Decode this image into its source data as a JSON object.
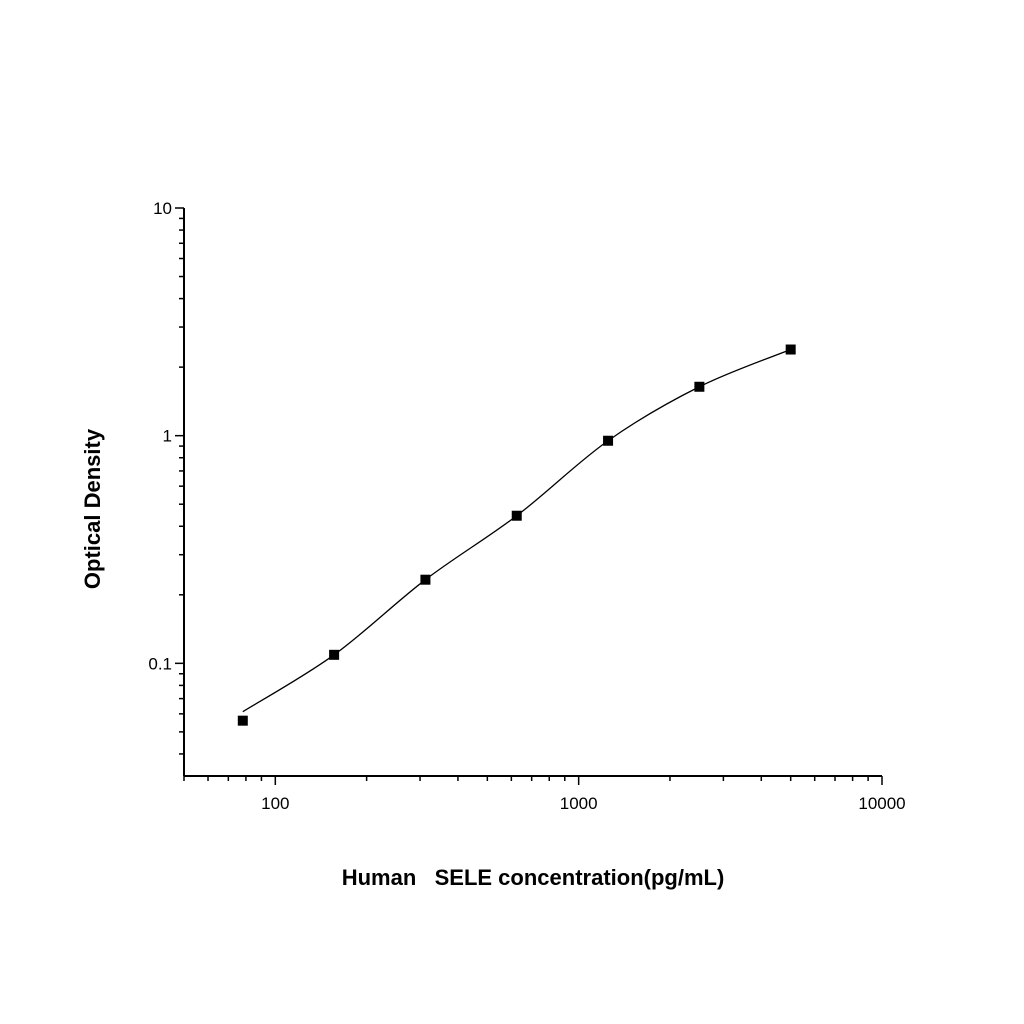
{
  "chart_data": {
    "type": "scatter",
    "title": "",
    "xlabel": "Human   SELE concentration(pg/mL)",
    "ylabel": "Optical Density",
    "xscale": "log",
    "yscale": "log",
    "xlim": [
      50,
      10000
    ],
    "ylim": [
      0.032,
      10
    ],
    "xticks": [
      100,
      1000,
      10000
    ],
    "xtick_labels": [
      "100",
      "1000",
      "10000"
    ],
    "yticks": [
      0.1,
      1,
      10
    ],
    "ytick_labels": [
      "0.1",
      "1",
      "10"
    ],
    "grid": false,
    "marker": "square",
    "color": "#000000",
    "fit_curve": true,
    "series": [
      {
        "x": [
          78.125,
          156.25,
          312.5,
          625,
          1250,
          2500,
          5000
        ],
        "y": [
          0.056,
          0.109,
          0.233,
          0.445,
          0.95,
          1.64,
          2.39
        ]
      }
    ]
  }
}
